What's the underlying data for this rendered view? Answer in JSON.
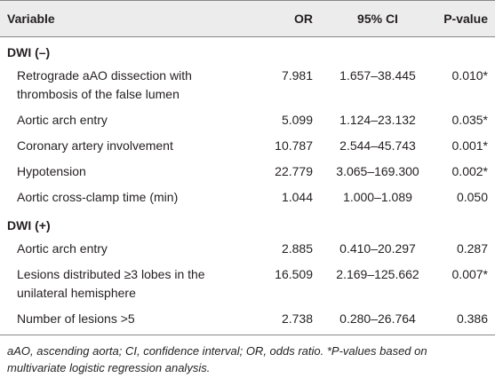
{
  "table": {
    "header": [
      "Variable",
      "OR",
      "95% CI",
      "P-value"
    ],
    "groups": [
      {
        "label": "DWI (–)",
        "rows": [
          [
            "Retrograde aAO dissection with thrombosis of the false lumen",
            "7.981",
            "1.657–38.445",
            "0.010*"
          ],
          [
            "Aortic arch entry",
            "5.099",
            "1.124–23.132",
            "0.035*"
          ],
          [
            "Coronary artery involvement",
            "10.787",
            "2.544–45.743",
            "0.001*"
          ],
          [
            "Hypotension",
            "22.779",
            "3.065–169.300",
            "0.002*"
          ],
          [
            "Aortic cross-clamp time (min)",
            "1.044",
            "1.000–1.089",
            "0.050"
          ]
        ]
      },
      {
        "label": "DWI (+)",
        "rows": [
          [
            "Aortic arch entry",
            "2.885",
            "0.410–20.297",
            "0.287"
          ],
          [
            "Lesions distributed ≥3 lobes in the unilateral hemisphere",
            "16.509",
            "2.169–125.662",
            "0.007*"
          ],
          [
            "Number of lesions >5",
            "2.738",
            "0.280–26.764",
            "0.386"
          ]
        ]
      }
    ],
    "footnote": "aAO, ascending aorta; CI, confidence interval; OR, odds ratio. *P-values based on multivariate logistic regression analysis."
  }
}
